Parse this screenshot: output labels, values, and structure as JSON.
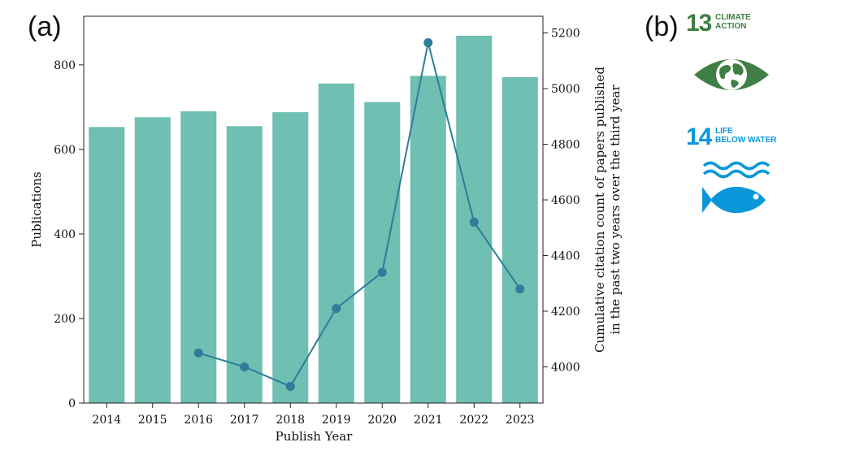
{
  "panel_labels": {
    "a": "(a)",
    "b": "(b)"
  },
  "chart_data": {
    "type": "bar",
    "categories": [
      "2014",
      "2015",
      "2016",
      "2017",
      "2018",
      "2019",
      "2020",
      "2021",
      "2022",
      "2023"
    ],
    "series": [
      {
        "type": "bar",
        "axis": "left",
        "values": [
          653,
          676,
          690,
          655,
          688,
          756,
          712,
          774,
          869,
          771
        ],
        "color": "#6fbfb2"
      },
      {
        "type": "line",
        "axis": "right",
        "x": [
          "2016",
          "2017",
          "2018",
          "2019",
          "2020",
          "2021",
          "2022",
          "2023"
        ],
        "values": [
          4050,
          4000,
          3930,
          4210,
          4340,
          5165,
          4520,
          4280
        ],
        "color": "#2e7d9a"
      }
    ],
    "xlabel": "Publish Year",
    "ylabel": "Publications",
    "ylabel_right": [
      "Cumulative citation count of papers published",
      "in the past two years over the third year"
    ],
    "ylim": [
      0,
      915
    ],
    "ylim_right": [
      3870,
      5260
    ],
    "yticks": [
      0,
      200,
      400,
      600,
      800
    ],
    "yticks_right": [
      4000,
      4200,
      4400,
      4600,
      4800,
      5000,
      5200
    ],
    "grid": false
  },
  "sdg": [
    {
      "number": "13",
      "title_lines": [
        "CLIMATE",
        "ACTION"
      ],
      "color": "#3f7e44",
      "icon": "eye-globe-icon"
    },
    {
      "number": "14",
      "title_lines": [
        "LIFE",
        "BELOW WATER"
      ],
      "color": "#0a97d9",
      "icon": "fish-waves-icon"
    }
  ]
}
